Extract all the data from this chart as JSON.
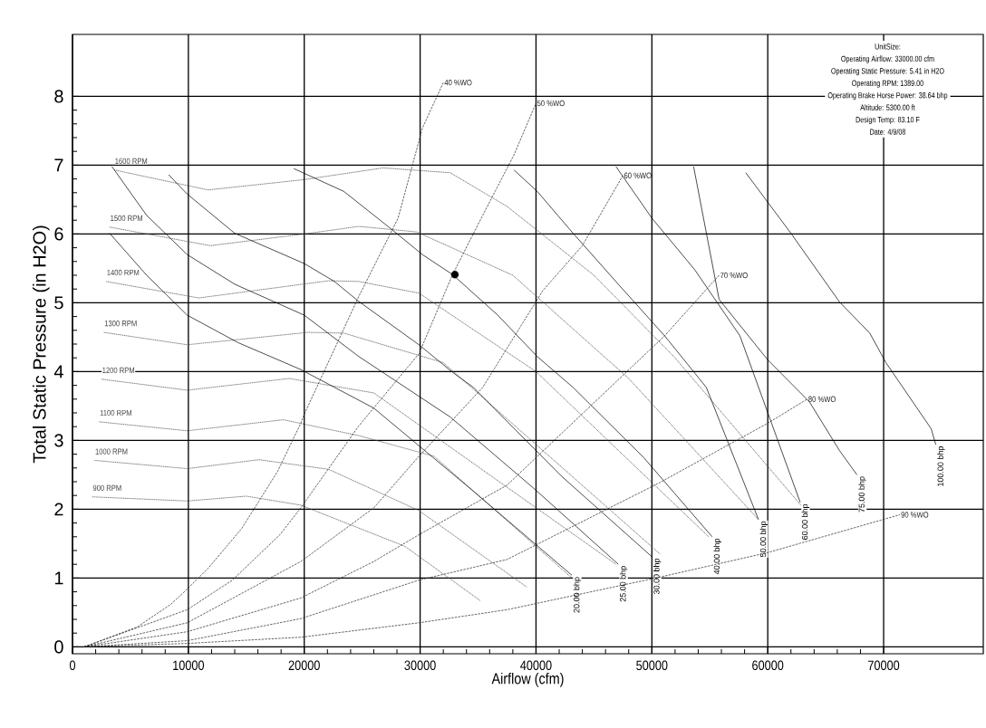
{
  "chart_data": {
    "type": "line",
    "xlabel": "Airflow (cfm)",
    "ylabel": "Total Static Pressure (in H2O)",
    "xlim": [
      0,
      78600
    ],
    "ylim": [
      -0.1,
      8.9
    ],
    "xticks": [
      0,
      10000,
      20000,
      30000,
      40000,
      50000,
      60000,
      70000
    ],
    "yticks": [
      0,
      1,
      2,
      3,
      4,
      5,
      6,
      7,
      8
    ],
    "grid": true,
    "annotations": [
      "UnitSize:",
      "Operating Airflow: 33000.00 cfm",
      "Operating Static Pressure: 5.41 in H2O",
      "Operating RPM: 1389.00",
      "Operating Brake Horse Power: 38.64 bhp",
      "Altitude: 5300.00 ft",
      "Design Temp: 83.10 F",
      "Date: 4/9/08"
    ],
    "series": [
      {
        "name": "1600 RPM",
        "color": "#444444",
        "line_style": "dotted",
        "x": [
          3600,
          11700,
          20000,
          26800,
          32600,
          37500,
          45000,
          52000,
          62900
        ],
        "values": [
          6.93,
          6.64,
          6.79,
          6.96,
          6.89,
          6.4,
          5.4,
          4.2,
          2.05
        ]
      },
      {
        "name": "1500 RPM",
        "color": "#444444",
        "line_style": "dotted",
        "x": [
          3200,
          11900,
          20000,
          24700,
          29700,
          38000,
          48000,
          59200
        ],
        "values": [
          6.1,
          5.83,
          6.0,
          6.11,
          6.03,
          5.4,
          3.9,
          1.85
        ]
      },
      {
        "name": "1400 RPM",
        "color": "#444444",
        "line_style": "dotted",
        "x": [
          2900,
          10900,
          22100,
          24700,
          29900,
          40000,
          54900
        ],
        "values": [
          5.31,
          5.07,
          5.32,
          5.31,
          5.14,
          4.0,
          1.6
        ]
      },
      {
        "name": "1300 RPM",
        "color": "#444444",
        "line_style": "dotted",
        "x": [
          2700,
          9900,
          20300,
          23400,
          32000,
          50700
        ],
        "values": [
          4.57,
          4.39,
          4.57,
          4.56,
          4.13,
          1.35
        ]
      },
      {
        "name": "1200 RPM",
        "color": "#444444",
        "line_style": "dotted",
        "x": [
          2500,
          9900,
          18700,
          26000,
          46900
        ],
        "values": [
          3.89,
          3.73,
          3.9,
          3.69,
          1.2
        ]
      },
      {
        "name": "1100 RPM",
        "color": "#444444",
        "line_style": "dotted",
        "x": [
          2300,
          9900,
          18200,
          24700,
          31200,
          43100
        ],
        "values": [
          3.27,
          3.14,
          3.3,
          3.07,
          2.77,
          1.0
        ]
      },
      {
        "name": "1000 RPM",
        "color": "#444444",
        "line_style": "dotted",
        "x": [
          1900,
          9900,
          16100,
          22100,
          29900,
          39200
        ],
        "values": [
          2.71,
          2.59,
          2.72,
          2.58,
          1.98,
          0.87
        ]
      },
      {
        "name": "900 RPM",
        "color": "#444444",
        "line_style": "dotted",
        "x": [
          1700,
          9900,
          15000,
          19700,
          28700,
          35200
        ],
        "values": [
          2.18,
          2.12,
          2.19,
          2.06,
          1.46,
          0.67
        ]
      },
      {
        "name": "20.00 bhp",
        "color": "#000000",
        "line_style": "solid",
        "x": [
          3200,
          6400,
          9900,
          14300,
          19700,
          26000,
          34400,
          43100
        ],
        "values": [
          6.01,
          5.4,
          4.82,
          4.42,
          4.03,
          3.47,
          2.29,
          1.04
        ]
      },
      {
        "name": "25.00 bhp",
        "color": "#000000",
        "line_style": "solid",
        "x": [
          3400,
          6400,
          8000,
          9900,
          14000,
          20000,
          24700,
          32600,
          39900,
          47100
        ],
        "values": [
          6.98,
          6.27,
          6.01,
          5.7,
          5.27,
          4.82,
          4.22,
          3.34,
          2.29,
          1.2
        ]
      },
      {
        "name": "30.00 bhp",
        "color": "#000000",
        "line_style": "solid",
        "x": [
          8300,
          9900,
          14000,
          20000,
          22600,
          24700,
          29900,
          32800,
          34600,
          42200,
          50000
        ],
        "values": [
          6.86,
          6.58,
          6.01,
          5.57,
          5.31,
          5.02,
          4.39,
          3.99,
          3.77,
          2.48,
          1.31
        ]
      },
      {
        "name": "40.00 bhp",
        "color": "#000000",
        "line_style": "solid",
        "x": [
          19100,
          23400,
          27300,
          30200,
          32800,
          36700,
          40100,
          43200,
          49300,
          55200
        ],
        "values": [
          6.95,
          6.62,
          6.1,
          5.7,
          5.41,
          4.82,
          4.22,
          3.77,
          2.75,
          1.6
        ]
      },
      {
        "name": "50.00 bhp",
        "color": "#000000",
        "line_style": "solid",
        "x": [
          38100,
          40100,
          43200,
          47100,
          51100,
          54700,
          59200
        ],
        "values": [
          6.93,
          6.62,
          6.01,
          5.27,
          4.52,
          3.77,
          1.85
        ]
      },
      {
        "name": "60.00 bhp",
        "color": "#000000",
        "line_style": "solid",
        "x": [
          46900,
          50000,
          53700,
          57600,
          62800
        ],
        "values": [
          6.98,
          6.23,
          5.48,
          4.52,
          2.1
        ]
      },
      {
        "name": "75.00 bhp",
        "color": "#000000",
        "line_style": "solid",
        "x": [
          53600,
          55800,
          60000,
          63600,
          66200,
          67700
        ],
        "values": [
          6.98,
          5.05,
          4.17,
          3.56,
          2.85,
          2.5
        ]
      },
      {
        "name": "100.00 bhp",
        "color": "#000000",
        "line_style": "solid",
        "x": [
          58100,
          62000,
          66200,
          68800,
          70200,
          74100,
          74500
        ],
        "values": [
          6.89,
          6.01,
          5.01,
          4.56,
          4.13,
          3.17,
          2.94
        ]
      },
      {
        "name": "40 %WO",
        "color": "#222222",
        "line_style": "dashed",
        "x": [
          1000,
          5600,
          8500,
          9900,
          11700,
          14600,
          17700,
          19700,
          20000,
          24700,
          28100,
          30200,
          32000
        ],
        "values": [
          0,
          0.29,
          0.62,
          0.84,
          1.14,
          1.72,
          2.55,
          3.25,
          3.38,
          5.09,
          6.23,
          7.54,
          8.2
        ]
      },
      {
        "name": "50 %WO",
        "color": "#222222",
        "line_style": "dashed",
        "x": [
          1000,
          9900,
          13800,
          17900,
          19700,
          22100,
          24700,
          29900,
          32800,
          35400,
          38100,
          40000
        ],
        "values": [
          0,
          0.54,
          0.97,
          1.63,
          2.02,
          2.59,
          3.21,
          4.26,
          5.41,
          6.27,
          7.15,
          7.9
        ]
      },
      {
        "name": "60 %WO",
        "color": "#222222",
        "line_style": "dashed",
        "x": [
          1000,
          9900,
          19700,
          26000,
          29900,
          35400,
          40600,
          44000,
          47500
        ],
        "values": [
          0,
          0.35,
          1.24,
          2.02,
          2.77,
          3.77,
          5.18,
          5.83,
          6.85
        ]
      },
      {
        "name": "70 %WO",
        "color": "#222222",
        "line_style": "dashed",
        "x": [
          1000,
          9900,
          19700,
          26000,
          29900,
          37500,
          46400,
          51100,
          55800
        ],
        "values": [
          0,
          0.22,
          0.71,
          1.24,
          1.63,
          2.35,
          3.77,
          4.52,
          5.4
        ]
      },
      {
        "name": "80 %WO",
        "color": "#222222",
        "line_style": "dashed",
        "x": [
          1000,
          9900,
          19700,
          29900,
          37500,
          50600,
          60000,
          63400
        ],
        "values": [
          0,
          0.09,
          0.41,
          0.97,
          1.27,
          2.38,
          3.25,
          3.6
        ]
      },
      {
        "name": "90 %WO",
        "color": "#222222",
        "line_style": "dashed",
        "x": [
          1000,
          9900,
          19700,
          29900,
          37500,
          50600,
          60000,
          71400
        ],
        "values": [
          0,
          0.05,
          0.14,
          0.35,
          0.54,
          1.01,
          1.37,
          1.92
        ]
      },
      {
        "type": "scatter",
        "marker": "circle",
        "color": "#000000",
        "x": [
          33000
        ],
        "values": [
          5.41
        ]
      }
    ]
  }
}
